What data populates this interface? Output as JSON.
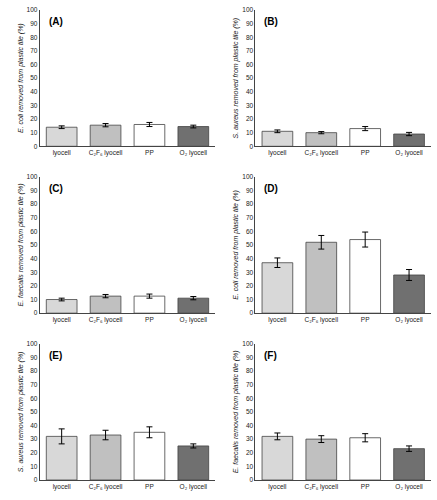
{
  "chart_data": [
    {
      "type": "bar",
      "annotations": [
        "(A)"
      ],
      "ylabel": "E. coli removed from plastic tile (%)",
      "categories": [
        "lyocell",
        "C₂F₆ lyocell",
        "PP",
        "O₂ lyocell"
      ],
      "values": [
        14,
        15.5,
        16,
        14.5
      ],
      "errors": [
        1.0,
        1.2,
        1.5,
        1.0
      ],
      "colors": [
        "#d8d8d8",
        "#c0c0c0",
        "#ffffff",
        "#707070"
      ],
      "ylim": [
        0,
        100
      ],
      "yticks": [
        0,
        10,
        20,
        30,
        40,
        50,
        60,
        70,
        80,
        90,
        100
      ],
      "grid": false
    },
    {
      "type": "bar",
      "annotations": [
        "(B)"
      ],
      "ylabel": "S. aureus removed from plastic tile (%)",
      "categories": [
        "lyocell",
        "C₂F₆ lyocell",
        "PP",
        "O₂ lyocell"
      ],
      "values": [
        11,
        10,
        13,
        9
      ],
      "errors": [
        1.0,
        0.8,
        1.5,
        1.2
      ],
      "colors": [
        "#d8d8d8",
        "#c0c0c0",
        "#ffffff",
        "#707070"
      ],
      "ylim": [
        0,
        100
      ],
      "yticks": [
        0,
        10,
        20,
        30,
        40,
        50,
        60,
        70,
        80,
        90,
        100
      ],
      "grid": false
    },
    {
      "type": "bar",
      "annotations": [
        "(C)"
      ],
      "ylabel": "E. faecalis removed from plastic tile (%)",
      "categories": [
        "lyocell",
        "C₂F₆ lyocell",
        "PP",
        "O₂ lyocell"
      ],
      "values": [
        10,
        12.5,
        12.5,
        11
      ],
      "errors": [
        1.0,
        1.2,
        1.5,
        1.2
      ],
      "colors": [
        "#d8d8d8",
        "#c0c0c0",
        "#ffffff",
        "#707070"
      ],
      "ylim": [
        0,
        100
      ],
      "yticks": [
        0,
        10,
        20,
        30,
        40,
        50,
        60,
        70,
        80,
        90,
        100
      ],
      "grid": false
    },
    {
      "type": "bar",
      "annotations": [
        "(D)"
      ],
      "ylabel": "E. coli removed from plastic tile (%)",
      "categories": [
        "lyocell",
        "C₂F₆ lyocell",
        "PP",
        "O₂ lyocell"
      ],
      "values": [
        37,
        52,
        54,
        28
      ],
      "errors": [
        3.5,
        5.0,
        5.5,
        4.0
      ],
      "colors": [
        "#d8d8d8",
        "#c0c0c0",
        "#ffffff",
        "#707070"
      ],
      "ylim": [
        0,
        100
      ],
      "yticks": [
        0,
        10,
        20,
        30,
        40,
        50,
        60,
        70,
        80,
        90,
        100
      ],
      "grid": false
    },
    {
      "type": "bar",
      "annotations": [
        "(E)"
      ],
      "ylabel": "S. aureus removed from plastic tile (%)",
      "categories": [
        "lyocell",
        "C₂F₆ lyocell",
        "PP",
        "O₂ lyocell"
      ],
      "values": [
        32,
        33,
        35,
        25
      ],
      "errors": [
        5.5,
        3.5,
        4.0,
        1.5
      ],
      "colors": [
        "#d8d8d8",
        "#c0c0c0",
        "#ffffff",
        "#707070"
      ],
      "ylim": [
        0,
        100
      ],
      "yticks": [
        0,
        10,
        20,
        30,
        40,
        50,
        60,
        70,
        80,
        90,
        100
      ],
      "grid": false
    },
    {
      "type": "bar",
      "annotations": [
        "(F)"
      ],
      "ylabel": "E. faecalis removed from plastic tile (%)",
      "categories": [
        "lyocell",
        "C₂F₆ lyocell",
        "PP",
        "O₂ lyocell"
      ],
      "values": [
        32,
        30,
        31,
        23
      ],
      "errors": [
        2.5,
        2.5,
        3.0,
        2.0
      ],
      "colors": [
        "#d8d8d8",
        "#c0c0c0",
        "#ffffff",
        "#707070"
      ],
      "ylim": [
        0,
        100
      ],
      "yticks": [
        0,
        10,
        20,
        30,
        40,
        50,
        60,
        70,
        80,
        90,
        100
      ],
      "grid": false
    }
  ]
}
